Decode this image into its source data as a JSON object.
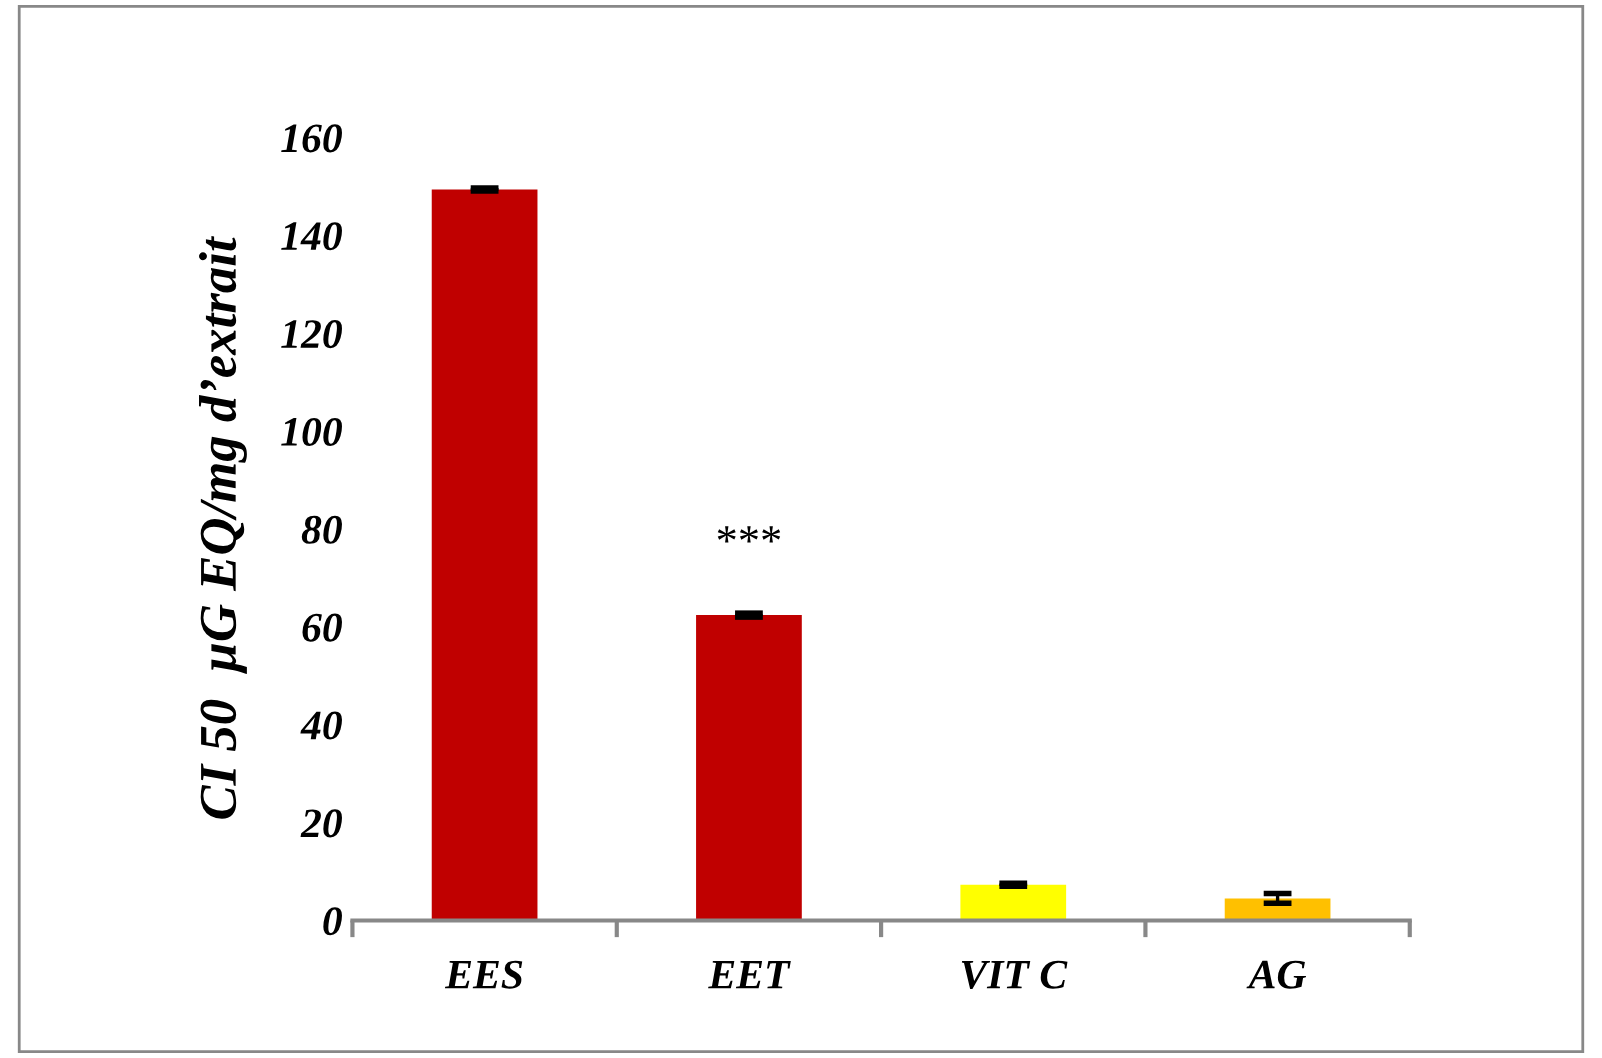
{
  "chart_data": {
    "type": "bar",
    "ylabel": "CI 50  µG EQ/mg d’extrait",
    "categories": [
      "EES",
      "EET",
      "VIT C",
      "AG"
    ],
    "values": [
      149.4,
      62.4,
      7.3,
      4.5
    ],
    "errors": [
      0.3,
      0.4,
      0.3,
      1.0
    ],
    "colors": [
      "#c00000",
      "#c00000",
      "#ffff00",
      "#ffc000"
    ],
    "annotations": [
      "***"
    ],
    "ylim": [
      0,
      160
    ],
    "yticks": [
      0,
      20,
      40,
      60,
      80,
      100,
      120,
      140,
      160
    ],
    "grid": false
  }
}
